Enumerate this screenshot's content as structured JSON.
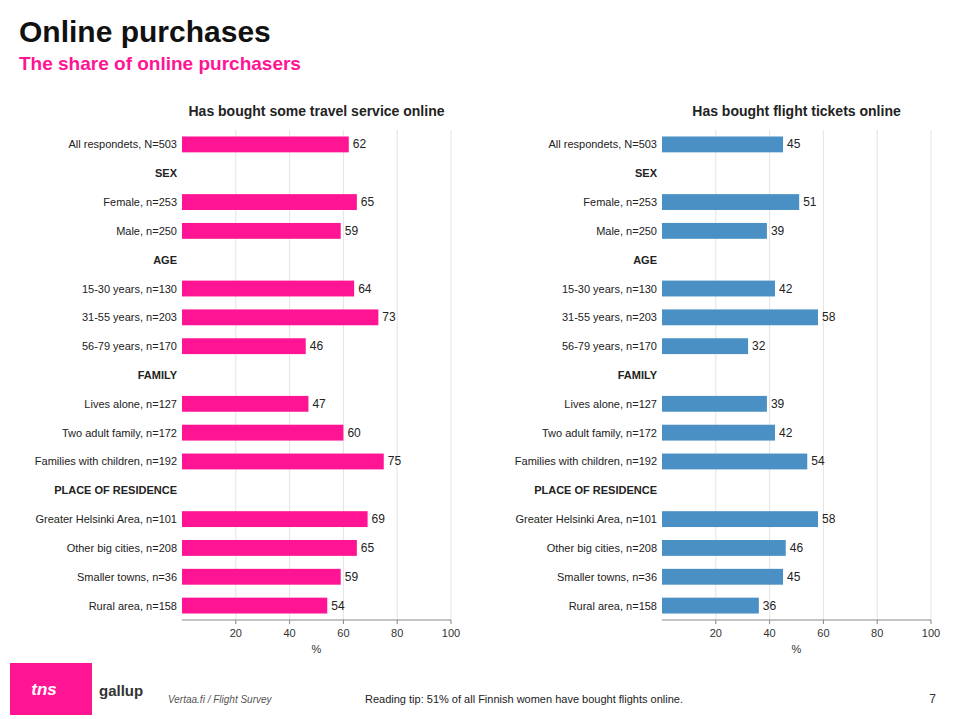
{
  "title": "Online purchases",
  "subtitle": "The share of online purchasers",
  "logo": "tns",
  "brand": "gallup",
  "source": "Vertaa.fi / Flight Survey",
  "note": "Reading tip: 51% of all Finnish women have bought flights online.",
  "page_number": "7",
  "chart_data": [
    {
      "type": "bar",
      "orientation": "horizontal",
      "title": "Has bought some travel service online",
      "categories": [
        "All respondets, N=503",
        "SEX",
        "Female, n=253",
        "Male, n=250",
        "AGE",
        "15-30 years, n=130",
        "31-55 years, n=203",
        "56-79 years, n=170",
        "FAMILY",
        "Lives alone, n=127",
        "Two adult family, n=172",
        "Families with children, n=192",
        "PLACE OF RESIDENCE",
        "Greater Helsinki Area, n=101",
        "Other big cities, n=208",
        "Smaller towns, n=36",
        "Rural area, n=158"
      ],
      "values": [
        62,
        null,
        65,
        59,
        null,
        64,
        73,
        46,
        null,
        47,
        60,
        75,
        null,
        69,
        65,
        59,
        54
      ],
      "color": "#FF1493",
      "xlabel": "%",
      "xlim": [
        0,
        100
      ],
      "xticks": [
        20,
        40,
        60,
        80,
        100
      ],
      "grid": true,
      "data_labels": true
    },
    {
      "type": "bar",
      "orientation": "horizontal",
      "title": "Has bought flight tickets online",
      "categories": [
        "All respondets, N=503",
        "SEX",
        "Female, n=253",
        "Male, n=250",
        "AGE",
        "15-30 years, n=130",
        "31-55 years, n=203",
        "56-79 years, n=170",
        "FAMILY",
        "Lives alone, n=127",
        "Two adult family, n=172",
        "Families with children, n=192",
        "PLACE OF RESIDENCE",
        "Greater Helsinki Area, n=101",
        "Other big cities, n=208",
        "Smaller towns, n=36",
        "Rural area, n=158"
      ],
      "values": [
        45,
        null,
        51,
        39,
        null,
        42,
        58,
        32,
        null,
        39,
        42,
        54,
        null,
        58,
        46,
        45,
        36
      ],
      "color": "#4A90C4",
      "xlabel": "%",
      "xlim": [
        0,
        100
      ],
      "xticks": [
        20,
        40,
        60,
        80,
        100
      ],
      "grid": true,
      "data_labels": true
    }
  ]
}
